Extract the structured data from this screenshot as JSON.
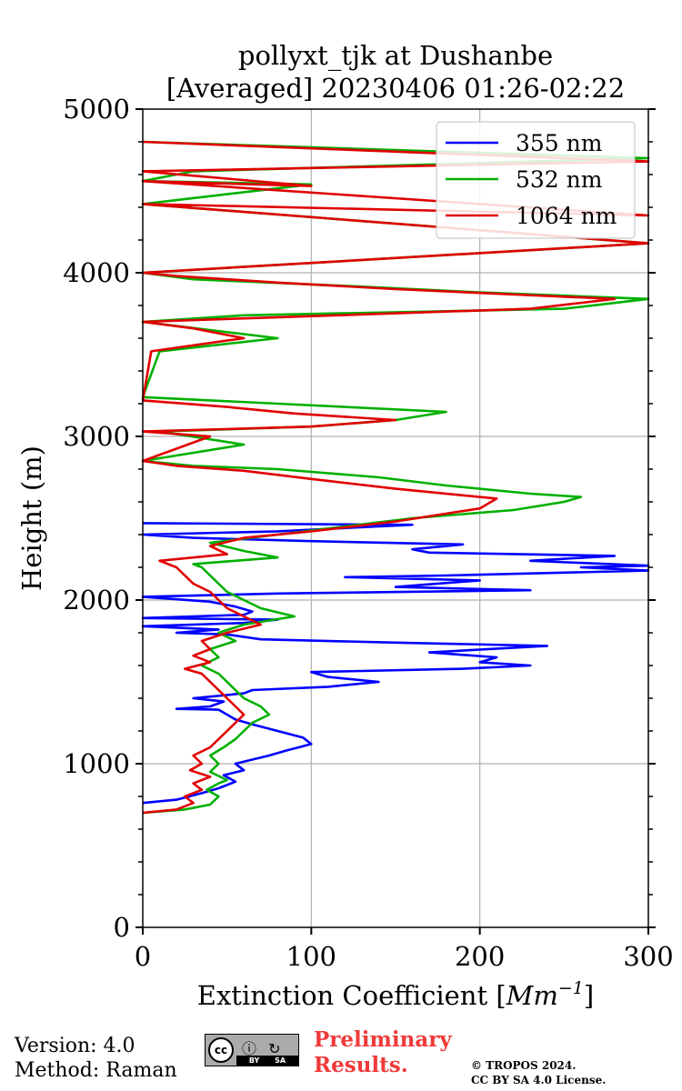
{
  "chart_data": {
    "type": "line",
    "title": [
      "pollyxt_tjk at Dushanbe",
      "[Averaged] 20230406 01:26-02:22"
    ],
    "xlabel": "Extinction Coefficient [",
    "xlabel_unit": "Mm",
    "xlabel_exp": "−1",
    "xlabel_close": "]",
    "ylabel": "Height (m)",
    "xlim": [
      0,
      300
    ],
    "ylim": [
      0,
      5000
    ],
    "x_ticks": [
      0,
      100,
      200,
      300
    ],
    "y_ticks": [
      0,
      1000,
      2000,
      3000,
      4000,
      5000
    ],
    "grid": true,
    "legend_position": "top-right",
    "series": [
      {
        "name": "355 nm",
        "color": "#0000ff",
        "points": [
          [
            0,
            760
          ],
          [
            20,
            780
          ],
          [
            35,
            820
          ],
          [
            45,
            850
          ],
          [
            55,
            890
          ],
          [
            48,
            930
          ],
          [
            60,
            960
          ],
          [
            55,
            1000
          ],
          [
            75,
            1050
          ],
          [
            85,
            1080
          ],
          [
            100,
            1120
          ],
          [
            95,
            1160
          ],
          [
            80,
            1200
          ],
          [
            65,
            1240
          ],
          [
            55,
            1270
          ],
          [
            50,
            1300
          ],
          [
            45,
            1330
          ],
          [
            20,
            1335
          ],
          [
            40,
            1350
          ],
          [
            48,
            1380
          ],
          [
            30,
            1400
          ],
          [
            60,
            1430
          ],
          [
            65,
            1450
          ],
          [
            110,
            1470
          ],
          [
            140,
            1500
          ],
          [
            110,
            1530
          ],
          [
            100,
            1560
          ],
          [
            190,
            1580
          ],
          [
            230,
            1600
          ],
          [
            200,
            1620
          ],
          [
            210,
            1650
          ],
          [
            170,
            1680
          ],
          [
            240,
            1720
          ],
          [
            150,
            1740
          ],
          [
            70,
            1760
          ],
          [
            50,
            1790
          ],
          [
            20,
            1800
          ],
          [
            45,
            1820
          ],
          [
            0,
            1840
          ],
          [
            60,
            1860
          ],
          [
            80,
            1880
          ],
          [
            0,
            1890
          ],
          [
            60,
            1910
          ],
          [
            65,
            1930
          ],
          [
            55,
            1960
          ],
          [
            40,
            1990
          ],
          [
            0,
            2020
          ],
          [
            80,
            2040
          ],
          [
            230,
            2060
          ],
          [
            150,
            2080
          ],
          [
            200,
            2120
          ],
          [
            120,
            2140
          ],
          [
            180,
            2150
          ],
          [
            300,
            2180
          ],
          [
            260,
            2200
          ],
          [
            300,
            2210
          ],
          [
            230,
            2240
          ],
          [
            280,
            2270
          ],
          [
            170,
            2290
          ],
          [
            160,
            2310
          ],
          [
            190,
            2340
          ],
          [
            100,
            2360
          ],
          [
            30,
            2380
          ],
          [
            0,
            2400
          ],
          [
            80,
            2420
          ],
          [
            160,
            2460
          ],
          [
            0,
            2470
          ]
        ]
      },
      {
        "name": "532 nm",
        "color": "#00b000",
        "points": [
          [
            0,
            700
          ],
          [
            25,
            720
          ],
          [
            40,
            750
          ],
          [
            45,
            800
          ],
          [
            38,
            840
          ],
          [
            45,
            880
          ],
          [
            50,
            900
          ],
          [
            40,
            950
          ],
          [
            45,
            1000
          ],
          [
            40,
            1050
          ],
          [
            48,
            1100
          ],
          [
            55,
            1150
          ],
          [
            60,
            1200
          ],
          [
            65,
            1250
          ],
          [
            75,
            1300
          ],
          [
            70,
            1350
          ],
          [
            60,
            1400
          ],
          [
            55,
            1450
          ],
          [
            50,
            1500
          ],
          [
            45,
            1550
          ],
          [
            35,
            1600
          ],
          [
            45,
            1650
          ],
          [
            40,
            1700
          ],
          [
            55,
            1750
          ],
          [
            45,
            1800
          ],
          [
            60,
            1850
          ],
          [
            90,
            1900
          ],
          [
            70,
            1950
          ],
          [
            60,
            2000
          ],
          [
            50,
            2050
          ],
          [
            45,
            2100
          ],
          [
            40,
            2150
          ],
          [
            35,
            2200
          ],
          [
            30,
            2220
          ],
          [
            80,
            2260
          ],
          [
            60,
            2300
          ],
          [
            40,
            2350
          ],
          [
            80,
            2400
          ],
          [
            120,
            2450
          ],
          [
            160,
            2500
          ],
          [
            220,
            2550
          ],
          [
            250,
            2600
          ],
          [
            260,
            2630
          ],
          [
            230,
            2650
          ],
          [
            180,
            2700
          ],
          [
            140,
            2750
          ],
          [
            80,
            2800
          ],
          [
            30,
            2820
          ],
          [
            0,
            2850
          ],
          [
            60,
            2950
          ],
          [
            10,
            3030
          ],
          [
            100,
            3060
          ],
          [
            150,
            3100
          ],
          [
            180,
            3150
          ],
          [
            80,
            3200
          ],
          [
            0,
            3240
          ],
          [
            10,
            3520
          ],
          [
            80,
            3600
          ],
          [
            40,
            3650
          ],
          [
            0,
            3700
          ],
          [
            60,
            3740
          ],
          [
            250,
            3780
          ],
          [
            300,
            3840
          ],
          [
            200,
            3880
          ],
          [
            120,
            3920
          ],
          [
            30,
            3960
          ],
          [
            0,
            4000
          ],
          [
            300,
            4180
          ],
          [
            0,
            4420
          ],
          [
            100,
            4540
          ],
          [
            0,
            4560
          ],
          [
            30,
            4620
          ],
          [
            300,
            4700
          ],
          [
            0,
            4800
          ]
        ]
      },
      {
        "name": "1064 nm",
        "color": "#e00000",
        "points": [
          [
            0,
            700
          ],
          [
            20,
            720
          ],
          [
            30,
            760
          ],
          [
            25,
            800
          ],
          [
            35,
            840
          ],
          [
            30,
            880
          ],
          [
            40,
            920
          ],
          [
            28,
            960
          ],
          [
            35,
            1000
          ],
          [
            30,
            1050
          ],
          [
            40,
            1100
          ],
          [
            45,
            1150
          ],
          [
            50,
            1200
          ],
          [
            55,
            1250
          ],
          [
            60,
            1300
          ],
          [
            55,
            1350
          ],
          [
            50,
            1400
          ],
          [
            45,
            1450
          ],
          [
            40,
            1500
          ],
          [
            35,
            1550
          ],
          [
            25,
            1580
          ],
          [
            40,
            1620
          ],
          [
            30,
            1660
          ],
          [
            40,
            1700
          ],
          [
            35,
            1750
          ],
          [
            50,
            1800
          ],
          [
            70,
            1850
          ],
          [
            60,
            1900
          ],
          [
            50,
            1950
          ],
          [
            45,
            2000
          ],
          [
            40,
            2050
          ],
          [
            30,
            2100
          ],
          [
            25,
            2150
          ],
          [
            20,
            2200
          ],
          [
            10,
            2240
          ],
          [
            50,
            2280
          ],
          [
            40,
            2330
          ],
          [
            60,
            2380
          ],
          [
            100,
            2420
          ],
          [
            150,
            2480
          ],
          [
            200,
            2560
          ],
          [
            210,
            2620
          ],
          [
            150,
            2680
          ],
          [
            100,
            2740
          ],
          [
            60,
            2790
          ],
          [
            20,
            2820
          ],
          [
            0,
            2850
          ],
          [
            40,
            3000
          ],
          [
            0,
            3030
          ],
          [
            100,
            3060
          ],
          [
            150,
            3100
          ],
          [
            90,
            3140
          ],
          [
            50,
            3180
          ],
          [
            0,
            3220
          ],
          [
            5,
            3520
          ],
          [
            60,
            3600
          ],
          [
            30,
            3660
          ],
          [
            0,
            3700
          ],
          [
            230,
            3780
          ],
          [
            280,
            3840
          ],
          [
            150,
            3900
          ],
          [
            80,
            3940
          ],
          [
            20,
            3980
          ],
          [
            0,
            4000
          ],
          [
            300,
            4180
          ],
          [
            0,
            4420
          ],
          [
            300,
            4350
          ],
          [
            0,
            4560
          ],
          [
            100,
            4530
          ],
          [
            0,
            4620
          ],
          [
            300,
            4680
          ],
          [
            0,
            4800
          ]
        ]
      }
    ]
  },
  "footer": {
    "version": "Version: 4.0",
    "method": "Method: Raman",
    "preliminary_line1": "Preliminary",
    "preliminary_line2": "Results.",
    "copyright_line1": "© TROPOS 2024.",
    "copyright_line2": "CC BY SA 4.0 License.",
    "cc_badge_text": "cc",
    "cc_strip_text": "BY SA",
    "cc_icon_symbols": "ⓘ ↻"
  }
}
